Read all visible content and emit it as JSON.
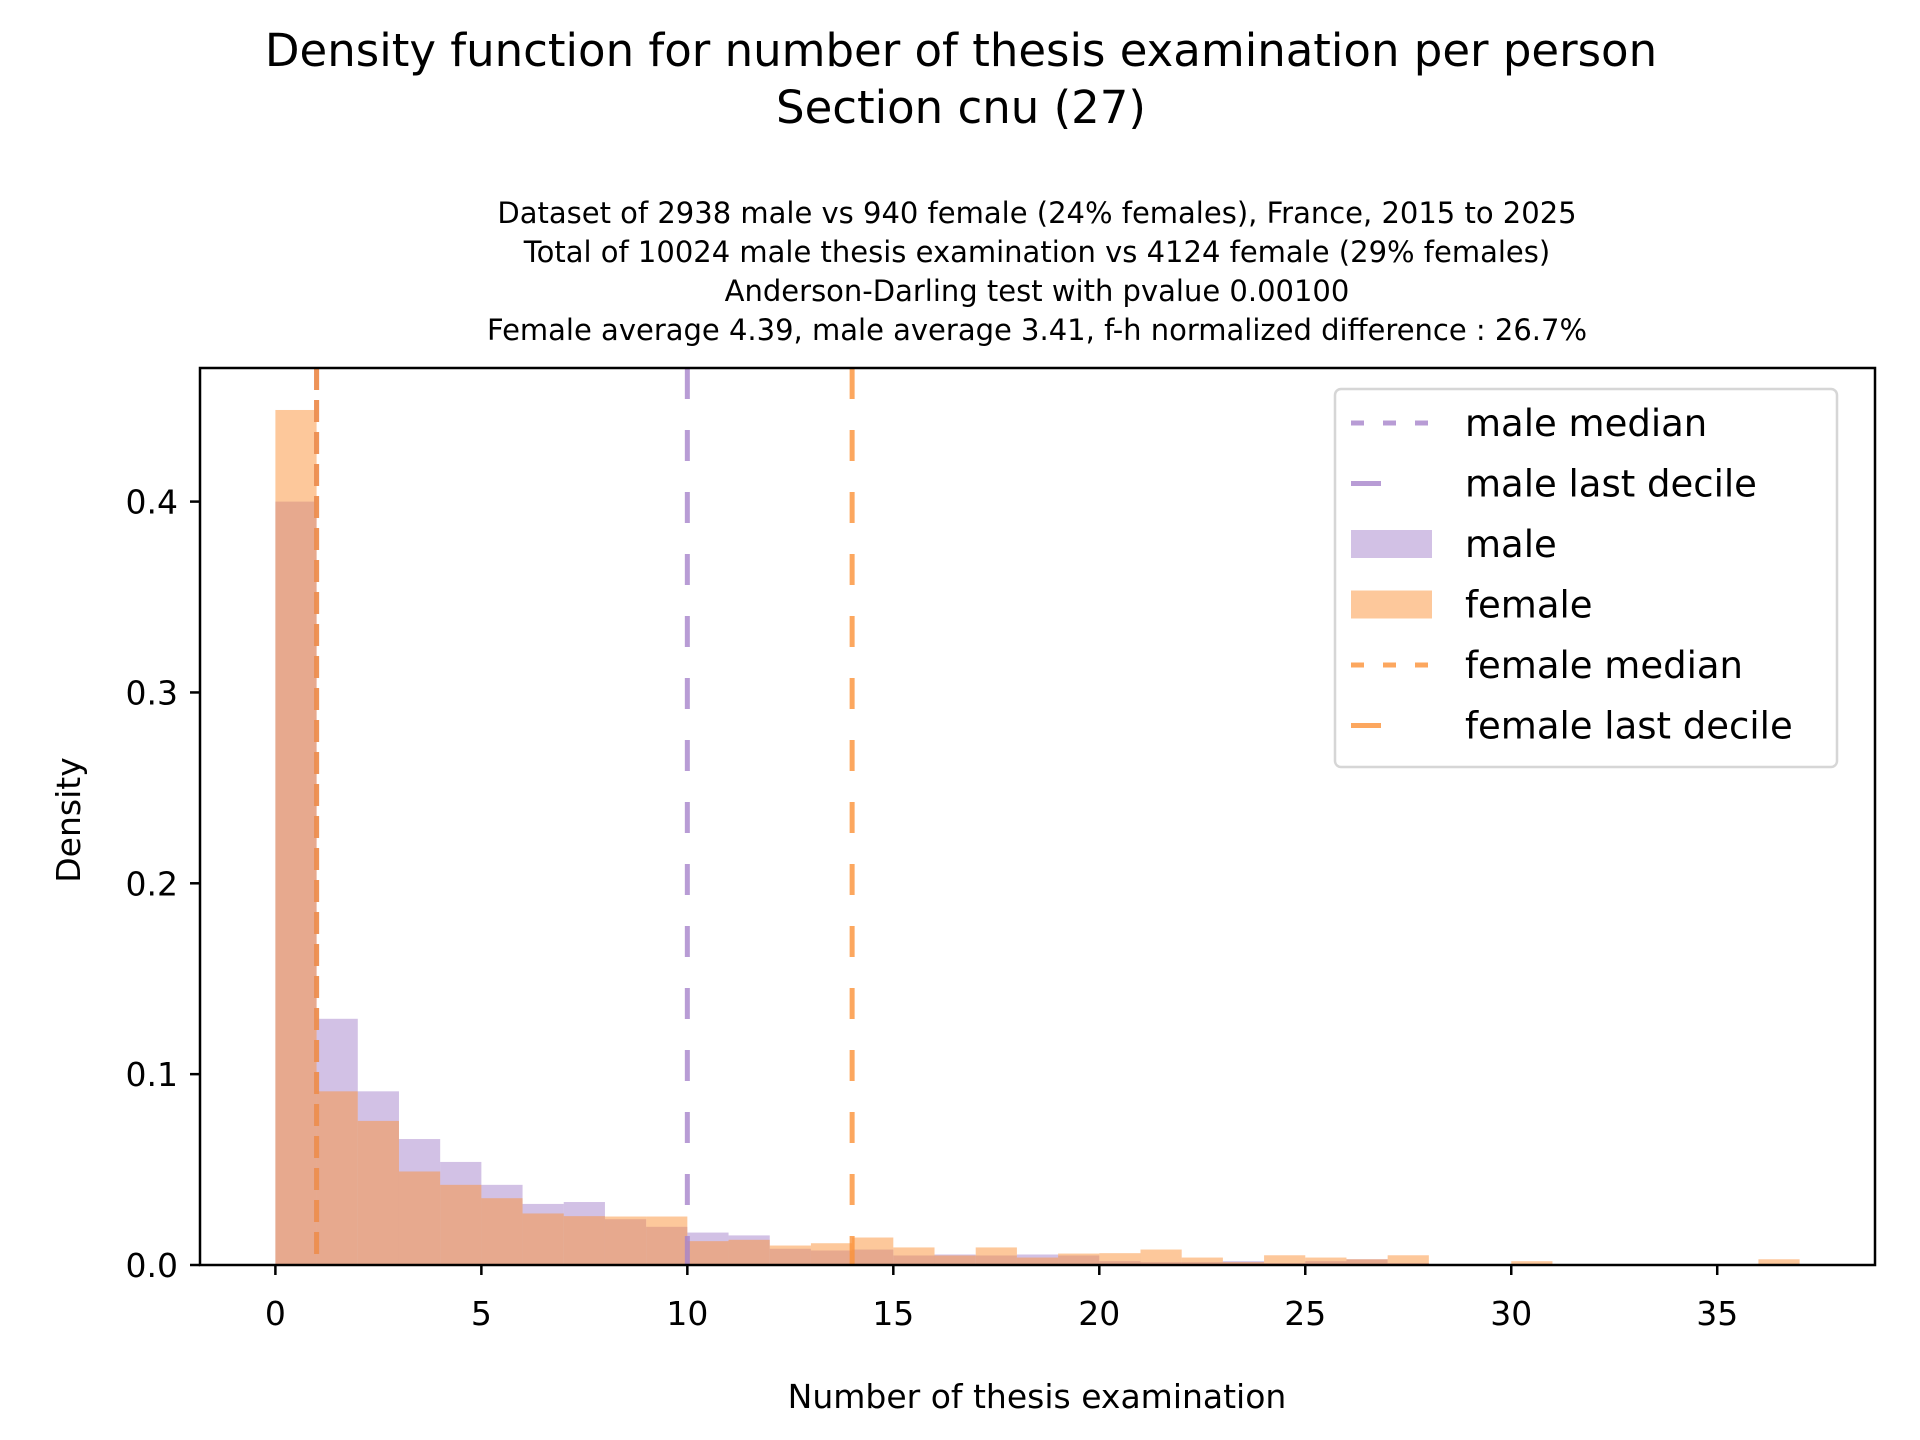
{
  "chart_data": {
    "type": "bar",
    "title": [
      "Density function for number of thesis examination per person",
      "Section cnu (27)"
    ],
    "subtitle": [
      "Dataset of 2938 male vs 940 female (24% females), France, 2015 to 2025",
      "Total of 10024 male thesis examination vs 4124 female (29% females)",
      "Anderson-Darling test with pvalue 0.00100",
      "Female average 4.39, male average 3.41, f-h normalized difference : 26.7%"
    ],
    "xlabel": "Number of thesis examination",
    "ylabel": "Density",
    "xlim": [
      -1.83,
      38.83
    ],
    "ylim": [
      0,
      0.47
    ],
    "xticks": [
      0,
      5,
      10,
      15,
      20,
      25,
      30,
      35
    ],
    "xtick_labels": [
      "0",
      "5",
      "10",
      "15",
      "20",
      "25",
      "30",
      "35"
    ],
    "yticks": [
      0.0,
      0.1,
      0.2,
      0.3,
      0.4
    ],
    "ytick_labels": [
      "0.0",
      "0.1",
      "0.2",
      "0.3",
      "0.4"
    ],
    "grid": false,
    "legend_position": "top-right",
    "bin_edges": [
      0,
      1,
      2,
      3,
      4,
      5,
      6,
      7,
      8,
      9,
      10,
      11,
      12,
      13,
      14,
      15,
      16,
      17,
      18,
      19,
      20,
      21,
      22,
      23,
      24,
      25,
      26,
      27,
      28,
      29,
      30,
      31,
      32,
      33,
      34,
      35,
      36,
      37
    ],
    "series": [
      {
        "name": "male",
        "color": "#a683cb",
        "opacity": 0.5,
        "values": [
          0.4,
          0.129,
          0.091,
          0.066,
          0.054,
          0.042,
          0.032,
          0.033,
          0.024,
          0.02,
          0.017,
          0.0155,
          0.0085,
          0.0076,
          0.0081,
          0.005,
          0.0055,
          0.005,
          0.0055,
          0.005,
          0.002,
          0.0015,
          0.0015,
          0.002,
          0.001,
          0.002,
          0.003,
          0.001,
          0.0005,
          0.0005,
          0.0005,
          0.0003,
          0,
          0,
          0.0005,
          0,
          0
        ]
      },
      {
        "name": "female",
        "color": "#fb9137",
        "opacity": 0.5,
        "values": [
          0.448,
          0.091,
          0.0755,
          0.049,
          0.042,
          0.035,
          0.027,
          0.0256,
          0.0254,
          0.0254,
          0.0125,
          0.0132,
          0.0102,
          0.0114,
          0.0144,
          0.0092,
          0.005,
          0.0092,
          0.0039,
          0.006,
          0.0062,
          0.0081,
          0.0039,
          0.0015,
          0.0051,
          0.0039,
          0.003,
          0.0051,
          0.0005,
          0.0005,
          0.002,
          0.0005,
          0,
          0,
          0.0005,
          0,
          0.003
        ]
      }
    ],
    "vlines": [
      {
        "name": "male median",
        "x": 1,
        "color": "#a683cb",
        "style": "dashed"
      },
      {
        "name": "male last decile",
        "x": 10,
        "color": "#a683cb",
        "style": "long-dashed"
      },
      {
        "name": "female median",
        "x": 1,
        "color": "#fb9137",
        "style": "dashed"
      },
      {
        "name": "female last decile",
        "x": 14,
        "color": "#fb9137",
        "style": "long-dashed"
      }
    ],
    "legend": [
      {
        "label": "male median",
        "kind": "line",
        "color": "#a683cb",
        "style": "dashed"
      },
      {
        "label": "male last decile",
        "kind": "line",
        "color": "#a683cb",
        "style": "long-dashed"
      },
      {
        "label": "male",
        "kind": "patch",
        "color": "#a683cb"
      },
      {
        "label": "female",
        "kind": "patch",
        "color": "#fb9137"
      },
      {
        "label": "female median",
        "kind": "line",
        "color": "#fb9137",
        "style": "dashed"
      },
      {
        "label": "female last decile",
        "kind": "line",
        "color": "#fb9137",
        "style": "long-dashed"
      }
    ]
  }
}
